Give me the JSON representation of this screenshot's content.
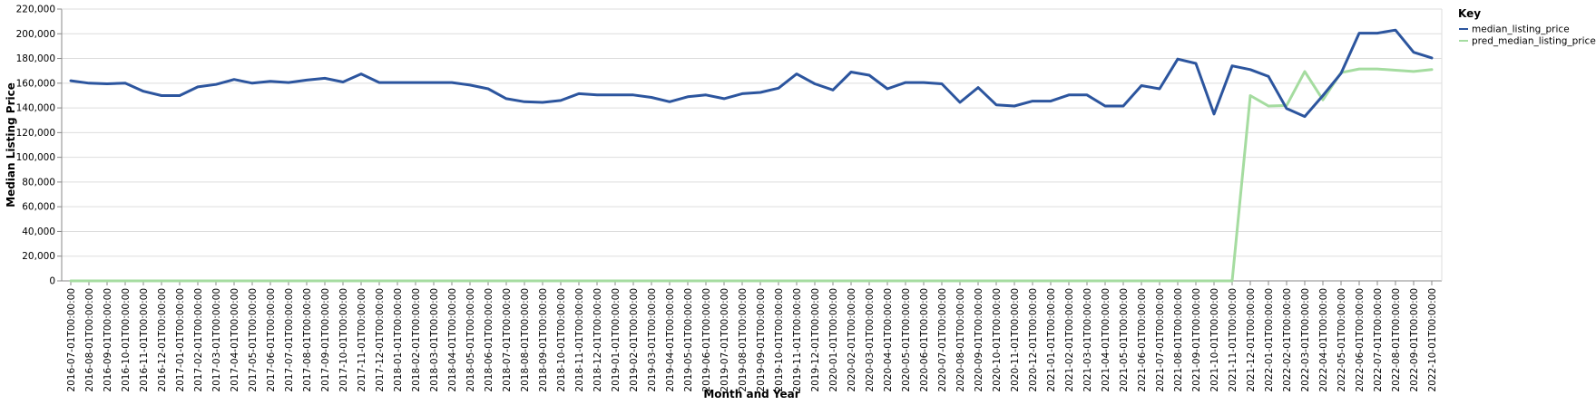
{
  "chart_data": {
    "type": "line",
    "title": "",
    "xlabel": "Month and Year",
    "ylabel": "Median Listing Price",
    "ylim": [
      0,
      220000
    ],
    "yticks": [
      "0",
      "20,000",
      "40,000",
      "60,000",
      "80,000",
      "100,000",
      "120,000",
      "140,000",
      "160,000",
      "180,000",
      "200,000",
      "220,000"
    ],
    "grid": true,
    "legend": {
      "title": "Key",
      "position": "top-right"
    },
    "x": [
      "2016-07-01T00:00:00",
      "2016-08-01T00:00:00",
      "2016-09-01T00:00:00",
      "2016-10-01T00:00:00",
      "2016-11-01T00:00:00",
      "2016-12-01T00:00:00",
      "2017-01-01T00:00:00",
      "2017-02-01T00:00:00",
      "2017-03-01T00:00:00",
      "2017-04-01T00:00:00",
      "2017-05-01T00:00:00",
      "2017-06-01T00:00:00",
      "2017-07-01T00:00:00",
      "2017-08-01T00:00:00",
      "2017-09-01T00:00:00",
      "2017-10-01T00:00:00",
      "2017-11-01T00:00:00",
      "2017-12-01T00:00:00",
      "2018-01-01T00:00:00",
      "2018-02-01T00:00:00",
      "2018-03-01T00:00:00",
      "2018-04-01T00:00:00",
      "2018-05-01T00:00:00",
      "2018-06-01T00:00:00",
      "2018-07-01T00:00:00",
      "2018-08-01T00:00:00",
      "2018-09-01T00:00:00",
      "2018-10-01T00:00:00",
      "2018-11-01T00:00:00",
      "2018-12-01T00:00:00",
      "2019-01-01T00:00:00",
      "2019-02-01T00:00:00",
      "2019-03-01T00:00:00",
      "2019-04-01T00:00:00",
      "2019-05-01T00:00:00",
      "2019-06-01T00:00:00",
      "2019-07-01T00:00:00",
      "2019-08-01T00:00:00",
      "2019-09-01T00:00:00",
      "2019-10-01T00:00:00",
      "2019-11-01T00:00:00",
      "2019-12-01T00:00:00",
      "2020-01-01T00:00:00",
      "2020-02-01T00:00:00",
      "2020-03-01T00:00:00",
      "2020-04-01T00:00:00",
      "2020-05-01T00:00:00",
      "2020-06-01T00:00:00",
      "2020-07-01T00:00:00",
      "2020-08-01T00:00:00",
      "2020-09-01T00:00:00",
      "2020-10-01T00:00:00",
      "2020-11-01T00:00:00",
      "2020-12-01T00:00:00",
      "2021-01-01T00:00:00",
      "2021-02-01T00:00:00",
      "2021-03-01T00:00:00",
      "2021-04-01T00:00:00",
      "2021-05-01T00:00:00",
      "2021-06-01T00:00:00",
      "2021-07-01T00:00:00",
      "2021-08-01T00:00:00",
      "2021-09-01T00:00:00",
      "2021-10-01T00:00:00",
      "2021-11-01T00:00:00",
      "2021-12-01T00:00:00",
      "2022-01-01T00:00:00",
      "2022-02-01T00:00:00",
      "2022-03-01T00:00:00",
      "2022-04-01T00:00:00",
      "2022-05-01T00:00:00",
      "2022-06-01T00:00:00",
      "2022-07-01T00:00:00",
      "2022-08-01T00:00:00",
      "2022-09-01T00:00:00",
      "2022-10-01T00:00:00"
    ],
    "series": [
      {
        "name": "median_listing_price",
        "color": "#2c559e",
        "values": [
          162000,
          160000,
          159500,
          160000,
          153500,
          150000,
          150000,
          157000,
          159000,
          163000,
          160000,
          161500,
          160500,
          162500,
          164000,
          161000,
          167500,
          160500,
          160500,
          160500,
          160500,
          160500,
          158500,
          155500,
          147500,
          145000,
          144500,
          146000,
          151500,
          150500,
          150500,
          150500,
          148500,
          145000,
          149000,
          150500,
          147500,
          151500,
          152500,
          156000,
          167500,
          159500,
          154500,
          169000,
          166500,
          155500,
          160500,
          160500,
          159500,
          144500,
          156500,
          142500,
          141500,
          145500,
          145500,
          150500,
          150500,
          141500,
          141500,
          158000,
          155500,
          179500,
          176000,
          135000,
          174000,
          171000,
          165500,
          139500,
          133000,
          150000,
          168000,
          200500,
          200500,
          203000,
          185000,
          180500
        ]
      },
      {
        "name": "pred_median_listing_price",
        "color": "#a5dca0",
        "values": [
          0,
          0,
          0,
          0,
          0,
          0,
          0,
          0,
          0,
          0,
          0,
          0,
          0,
          0,
          0,
          0,
          0,
          0,
          0,
          0,
          0,
          0,
          0,
          0,
          0,
          0,
          0,
          0,
          0,
          0,
          0,
          0,
          0,
          0,
          0,
          0,
          0,
          0,
          0,
          0,
          0,
          0,
          0,
          0,
          0,
          0,
          0,
          0,
          0,
          0,
          0,
          0,
          0,
          0,
          0,
          0,
          0,
          0,
          0,
          0,
          0,
          0,
          0,
          0,
          0,
          150000,
          141500,
          142000,
          169500,
          146500,
          168500,
          171500,
          171500,
          170500,
          169500,
          171000
        ]
      }
    ]
  }
}
